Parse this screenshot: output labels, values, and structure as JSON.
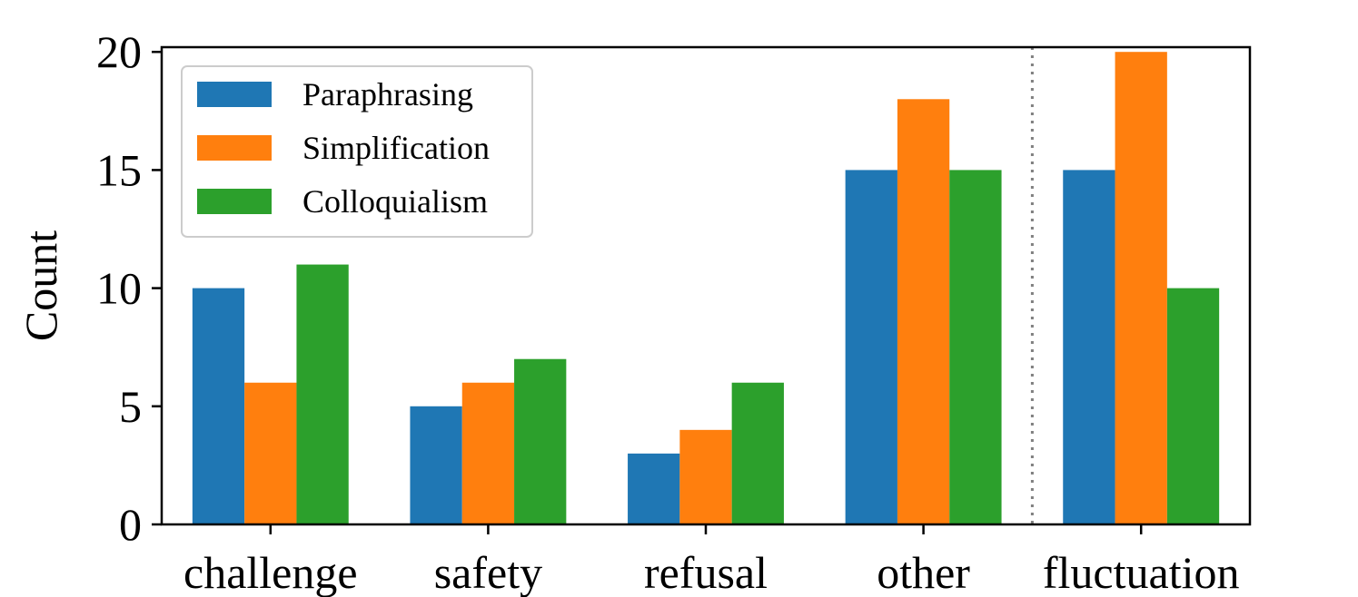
{
  "chart_data": {
    "type": "bar",
    "title": "",
    "xlabel": "",
    "ylabel": "Count",
    "categories": [
      "challenge",
      "safety",
      "refusal",
      "other",
      "fluctuation"
    ],
    "series": [
      {
        "name": "Paraphrasing",
        "values": [
          10,
          5,
          3,
          15,
          15
        ],
        "color": "#1f77b4"
      },
      {
        "name": "Simplification",
        "values": [
          6,
          6,
          4,
          18,
          20
        ],
        "color": "#ff7f0e"
      },
      {
        "name": "Colloquialism",
        "values": [
          11,
          7,
          6,
          15,
          10
        ],
        "color": "#2ca02c"
      }
    ],
    "ylim": [
      0,
      20.2
    ],
    "yticks": [
      0,
      5,
      10,
      15,
      20
    ],
    "grid": false,
    "legend_position": "top-left",
    "separator": {
      "between": [
        "other",
        "fluctuation"
      ],
      "style": "dotted",
      "color": "#808080"
    }
  }
}
